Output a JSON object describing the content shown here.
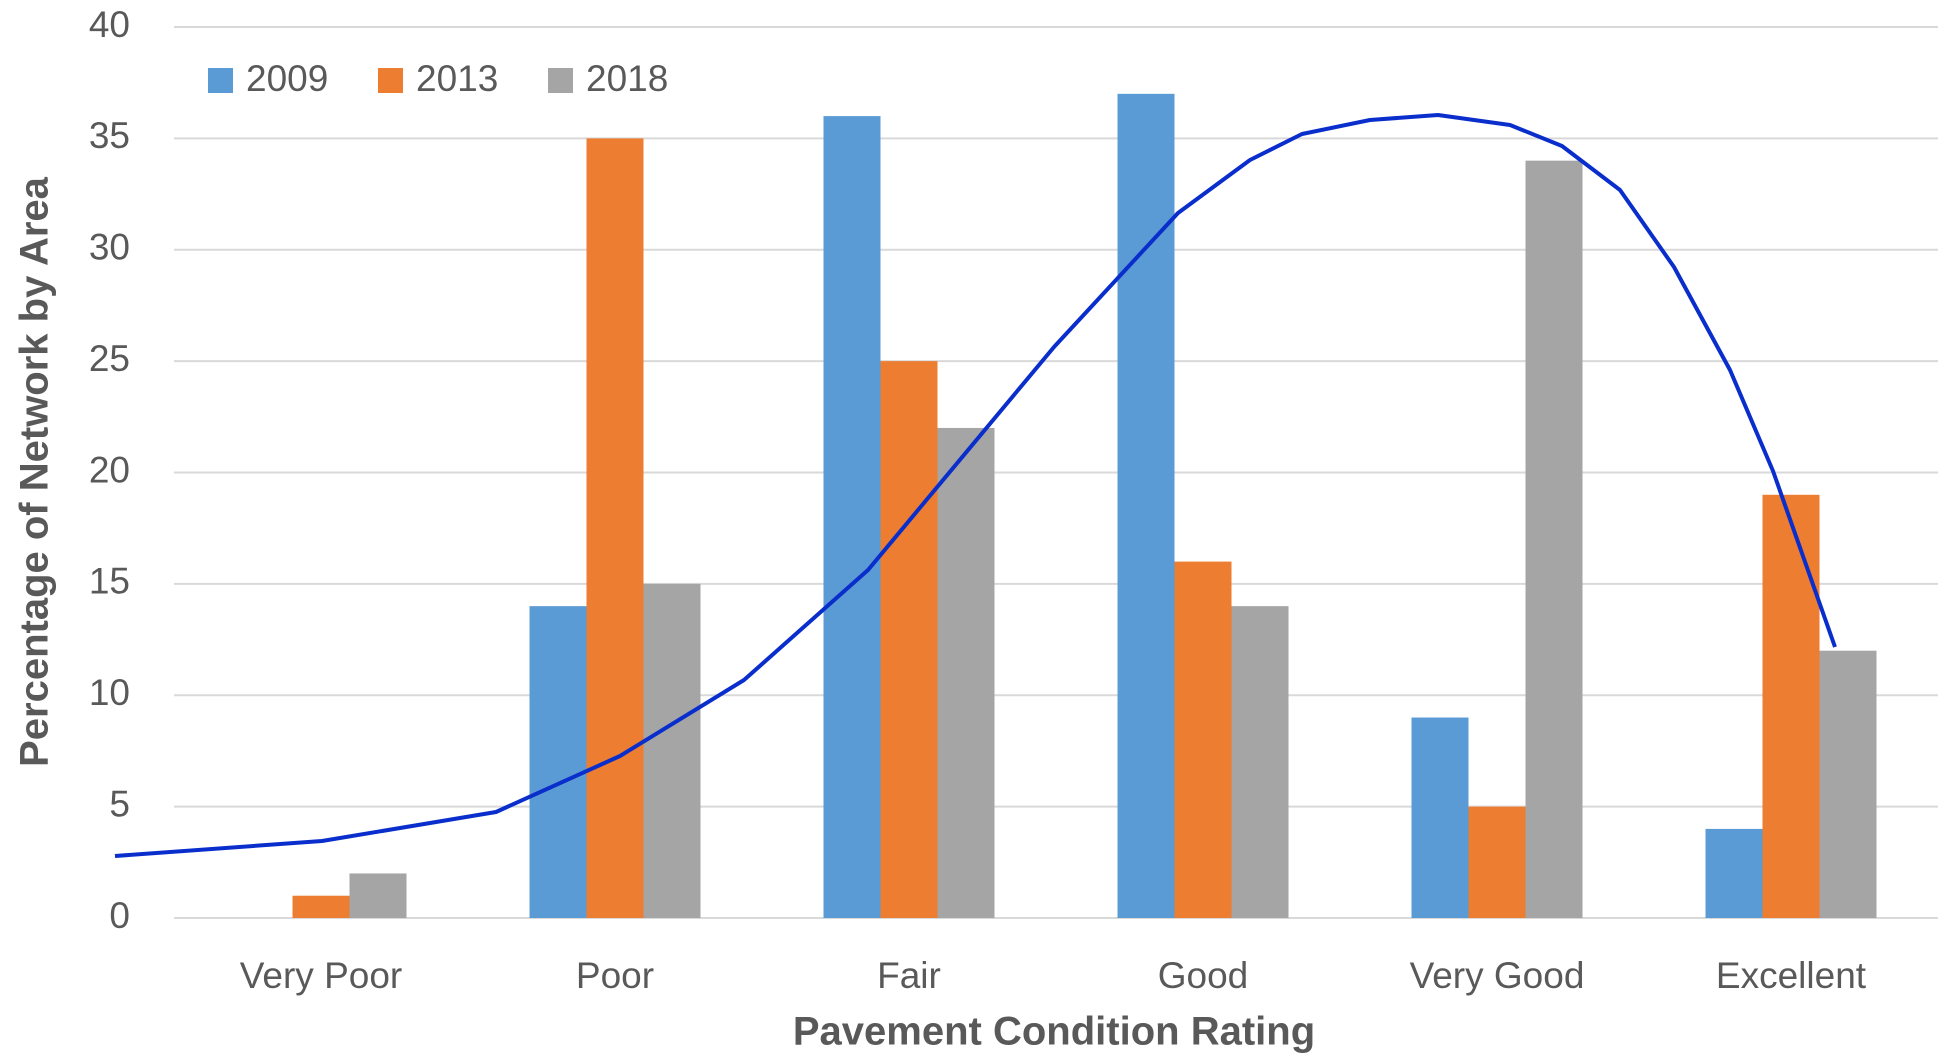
{
  "chart_data": {
    "type": "bar",
    "xlabel": "Pavement Condition Rating",
    "ylabel": "Percentage of Network by Area",
    "categories": [
      "Very Poor",
      "Poor",
      "Fair",
      "Good",
      "Very Good",
      "Excellent"
    ],
    "series": [
      {
        "name": "2009",
        "color": "#5b9bd5",
        "values": [
          0,
          14,
          36,
          37,
          9,
          4
        ]
      },
      {
        "name": "2013",
        "color": "#ed7d31",
        "values": [
          1,
          35,
          25,
          16,
          5,
          19
        ]
      },
      {
        "name": "2018",
        "color": "#a5a5a5",
        "values": [
          2,
          15,
          22,
          14,
          34,
          12
        ]
      }
    ],
    "ylim": [
      0,
      40
    ],
    "yticks": [
      0,
      5,
      10,
      15,
      20,
      25,
      30,
      35,
      40
    ],
    "grid": true,
    "legend": "top-left"
  }
}
